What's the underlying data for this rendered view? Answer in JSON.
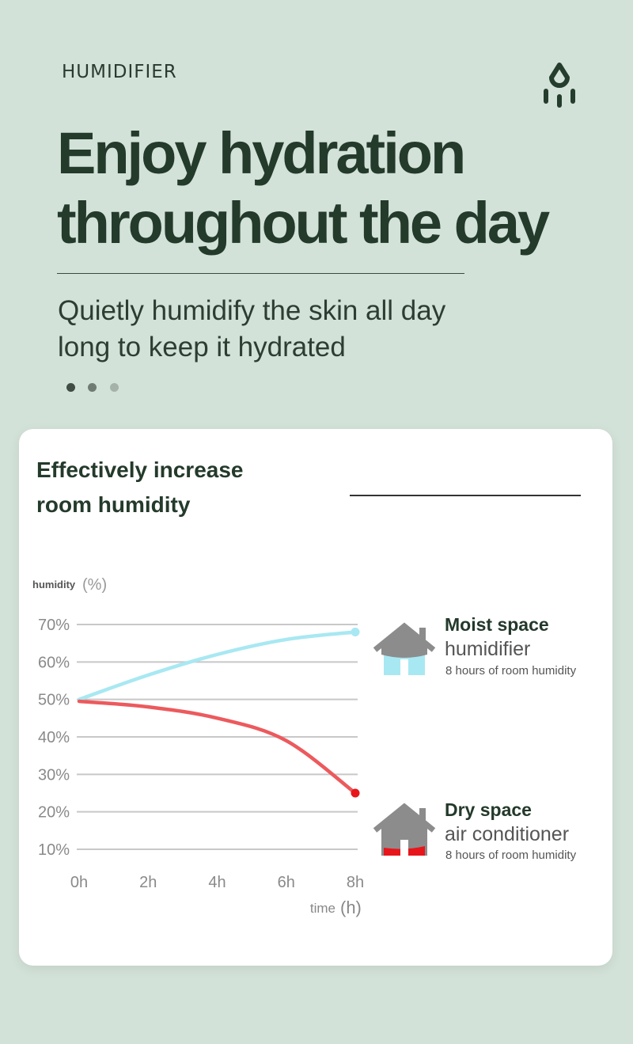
{
  "header": {
    "eyebrow": "HUMIDIFIER",
    "icon": "water-drop-icon",
    "title_line1": "Enjoy hydration",
    "title_line2": "throughout the day",
    "subtitle_line1": "Quietly humidify the skin all day",
    "subtitle_line2": "long to keep it hydrated",
    "pager": {
      "count": 3,
      "active": 0
    }
  },
  "card": {
    "title_line1": "Effectively increase",
    "title_line2": "room humidity"
  },
  "legend": [
    {
      "title": "Moist space",
      "subtitle": "humidifier",
      "note": "8 hours of room humidity",
      "icon": "house-icon",
      "color": "#a8e8f2"
    },
    {
      "title": "Dry space",
      "subtitle": "air conditioner",
      "note": "8 hours of room humidity",
      "icon": "house-icon",
      "color": "#e8151b"
    }
  ],
  "chart_data": {
    "type": "line",
    "ylabel": "humidity",
    "ylabel_unit": "(%)",
    "xlabel": "time",
    "xlabel_unit": "(h)",
    "x": [
      0,
      2,
      4,
      6,
      8
    ],
    "x_tick_labels": [
      "0h",
      "2h",
      "4h",
      "6h",
      "8h"
    ],
    "y_tick_labels": [
      "70%",
      "60%",
      "50%",
      "40%",
      "30%",
      "20%",
      "10%"
    ],
    "y_ticks": [
      70,
      60,
      50,
      40,
      30,
      20,
      10
    ],
    "ylim": [
      10,
      70
    ],
    "xlim": [
      0,
      8
    ],
    "grid": true,
    "series": [
      {
        "name": "Moist space",
        "values": [
          50,
          56.5,
          62,
          66,
          68
        ],
        "color": "#a8e8f2"
      },
      {
        "name": "Dry space",
        "values": [
          49.5,
          48,
          45,
          39,
          25
        ],
        "color": "#e8151b"
      }
    ]
  }
}
